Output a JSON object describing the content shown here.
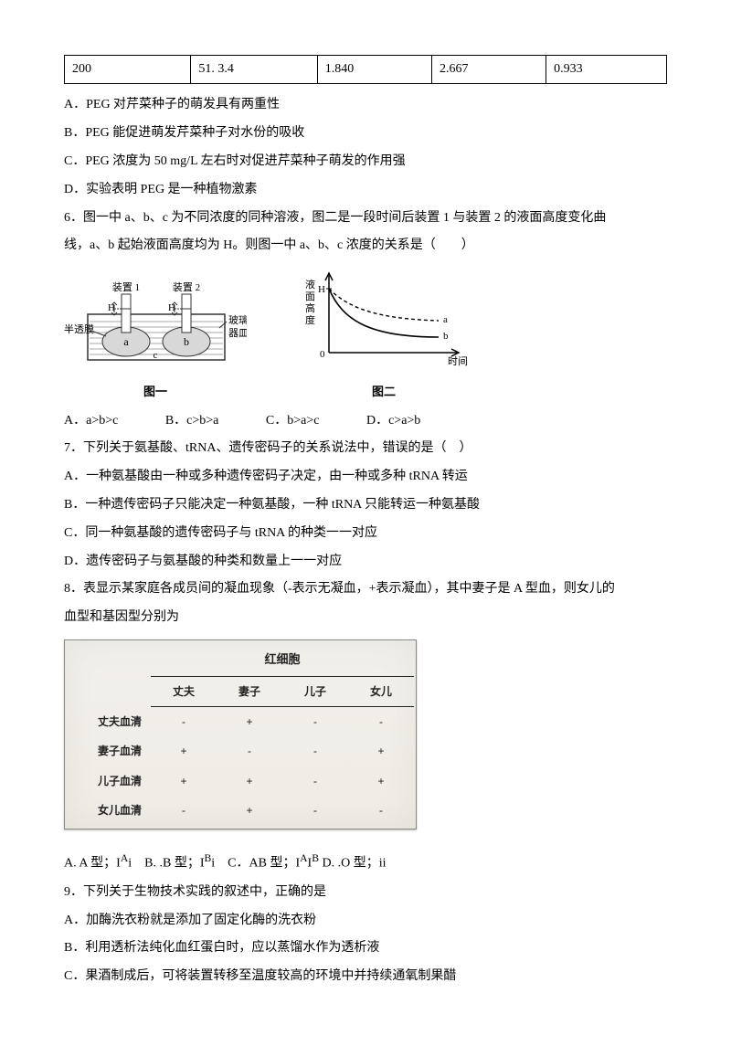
{
  "top_table": {
    "cells": [
      "200",
      "51. 3.4",
      "1.840",
      "2.667",
      "0.933"
    ]
  },
  "q5": {
    "a": "A．PEG 对芹菜种子的萌发具有两重性",
    "b": "B．PEG 能促进萌发芹菜种子对水份的吸收",
    "c": "C．PEG 浓度为 50 mg/L 左右时对促进芹菜种子萌发的作用强",
    "d": "D．实验表明 PEG 是一种植物激素"
  },
  "q6": {
    "stem1": "6．图一中 a、b、c 为不同浓度的同种溶液，图二是一段时间后装置 1 与装置 2 的液面高度变化曲",
    "stem2": "线，a、b 起始液面高度均为 H。则图一中 a、b、c 浓度的关系是（　　）",
    "fig1": {
      "caption": "图一",
      "label_dev1": "装置 1",
      "label_dev2": "装置 2",
      "label_membrane": "半透膜",
      "label_dish": "玻璃\n器皿",
      "label_H": "H",
      "label_a": "a",
      "label_b": "b",
      "label_c": "c",
      "stroke": "#444",
      "fill_water": "#e8e8e8",
      "fill_eggs": "#dcdcdc"
    },
    "fig2": {
      "caption": "图二",
      "ylabel": "液\n面\n高\n度",
      "xlabel": "时间",
      "H": "H",
      "series_a": "a",
      "series_b": "b",
      "stroke": "#000",
      "ylim": [
        0,
        1.1
      ],
      "xlim": [
        0,
        1.1
      ]
    },
    "opts": [
      "A．a>b>c",
      "B．c>b>a",
      "C．b>a>c",
      "D．c>a>b"
    ]
  },
  "q7": {
    "stem": "7．下列关于氨基酸、tRNA、遗传密码子的关系说法中，错误的是（　）",
    "a": "A．一种氨基酸由一种或多种遗传密码子决定，由一种或多种 tRNA 转运",
    "b": "B．一种遗传密码子只能决定一种氨基酸，一种 tRNA 只能转运一种氨基酸",
    "c": "C．同一种氨基酸的遗传密码子与 tRNA 的种类一一对应",
    "d": "D．遗传密码子与氨基酸的种类和数量上一一对应"
  },
  "q8": {
    "stem1": "8．表显示某家庭各成员间的凝血现象（-表示无凝血，+表示凝血），其中妻子是 A 型血，则女儿的",
    "stem2": "血型和基因型分别为",
    "table": {
      "group": "红细胞",
      "cols": [
        "丈夫",
        "妻子",
        "儿子",
        "女儿"
      ],
      "rows": [
        {
          "hdr": "丈夫血清",
          "cells": [
            "-",
            "+",
            "-",
            "-"
          ]
        },
        {
          "hdr": "妻子血清",
          "cells": [
            "+",
            "-",
            "-",
            "+"
          ]
        },
        {
          "hdr": "儿子血清",
          "cells": [
            "+",
            "+",
            "-",
            "+"
          ]
        },
        {
          "hdr": "女儿血清",
          "cells": [
            "-",
            "+",
            "-",
            "-"
          ]
        }
      ]
    },
    "opts_html": "A. A 型；I<sup>A</sup>i　B. .B 型；I<sup>B</sup>i　C．AB 型；I<sup>A</sup>I<sup>B</sup> D. .O 型；ii"
  },
  "q9": {
    "stem": "9．下列关于生物技术实践的叙述中，正确的是",
    "a": "A．加酶洗衣粉就是添加了固定化酶的洗衣粉",
    "b": "B．利用透析法纯化血红蛋白时，应以蒸馏水作为透析液",
    "c": "C．果酒制成后，可将装置转移至温度较高的环境中并持续通氧制果醋"
  }
}
